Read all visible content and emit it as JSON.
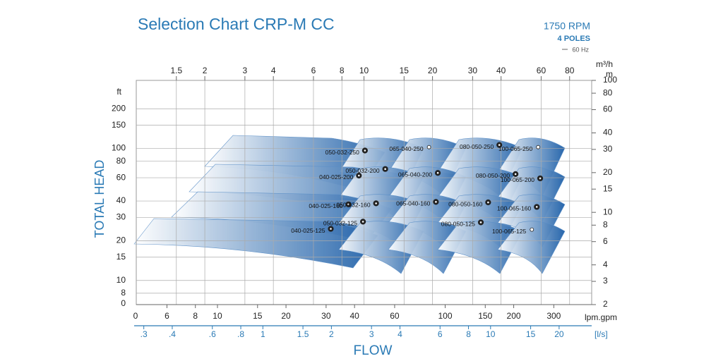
{
  "chart_data": {
    "type": "selection",
    "title": "Selection Chart CRP-M CC",
    "speed": "1750 RPM",
    "poles": "4 POLES",
    "frequency": "60 Hz",
    "x_label": "FLOW",
    "y_label": "TOTAL HEAD",
    "x_scale": "log",
    "y_scale": "log",
    "grid": true,
    "x_unit": "m³/h",
    "xlim": [
      1,
      100
    ],
    "xticks": [
      1.5,
      2,
      3,
      4,
      6,
      8,
      10,
      15,
      20,
      30,
      40,
      60,
      80
    ],
    "x2_unit": "lpm.gpm",
    "x2lim": [
      4.4,
      440
    ],
    "x2_zero_label": "0",
    "x2ticks": [
      6,
      8,
      10,
      15,
      20,
      30,
      40,
      60,
      100,
      150,
      200,
      300
    ],
    "x3_unit": "[l/s]",
    "x3lim": [
      0.278,
      27.8
    ],
    "x3ticks": [
      {
        "value": 0.3,
        "label": ".3"
      },
      {
        "value": 0.4,
        "label": ".4"
      },
      {
        "value": 0.6,
        "label": ".6"
      },
      {
        "value": 0.8,
        "label": ".8"
      },
      1,
      1.5,
      2,
      3,
      4,
      6,
      8,
      10,
      15,
      20
    ],
    "y_unit": "m",
    "ylim": [
      2,
      100
    ],
    "yticks": [
      2,
      3,
      4,
      6,
      8,
      10,
      15,
      20,
      30,
      40,
      60,
      80,
      100
    ],
    "y2_unit": "ft",
    "y2lim": [
      6.56,
      328
    ],
    "y2_zero_label": "0",
    "y2ticks": [
      8,
      10,
      15,
      20,
      30,
      40,
      60,
      80,
      100,
      150,
      200
    ],
    "color": "#1d5fa8",
    "pumps": [
      {
        "label": "050-032-250",
        "flow": 10.1,
        "head": 29.4,
        "marker": "filled"
      },
      {
        "label": "065-040-250",
        "flow": 19.3,
        "head": 31.2,
        "marker": "open"
      },
      {
        "label": "080-050-250",
        "flow": 39.3,
        "head": 32.4,
        "marker": "filled"
      },
      {
        "label": "100-065-250",
        "flow": 58.2,
        "head": 31.2,
        "marker": "open"
      },
      {
        "label": "040-025-200",
        "flow": 9.5,
        "head": 19.0,
        "marker": "filled"
      },
      {
        "label": "050-032-200",
        "flow": 12.4,
        "head": 21.3,
        "marker": "filled"
      },
      {
        "label": "065-040-200",
        "flow": 21.1,
        "head": 19.9,
        "marker": "filled"
      },
      {
        "label": "080-050-200",
        "flow": 46.3,
        "head": 19.5,
        "marker": "filled"
      },
      {
        "label": "100-065-200",
        "flow": 59.4,
        "head": 18.1,
        "marker": "filled"
      },
      {
        "label": "040-025-160",
        "flow": 8.55,
        "head": 11.5,
        "marker": "filled"
      },
      {
        "label": "050-032-160",
        "flow": 11.3,
        "head": 11.7,
        "marker": "filled"
      },
      {
        "label": "065-040-160",
        "flow": 20.7,
        "head": 12.0,
        "marker": "filled"
      },
      {
        "label": "080-050-160",
        "flow": 35.1,
        "head": 11.9,
        "marker": "filled"
      },
      {
        "label": "100-065-160",
        "flow": 57.4,
        "head": 11.0,
        "marker": "filled"
      },
      {
        "label": "040-025-125",
        "flow": 7.15,
        "head": 7.5,
        "marker": "filled"
      },
      {
        "label": "050-032-125",
        "flow": 9.9,
        "head": 8.5,
        "marker": "filled"
      },
      {
        "label": "080-050-125",
        "flow": 32.6,
        "head": 8.4,
        "marker": "filled"
      },
      {
        "label": "100-065-125",
        "flow": 54.6,
        "head": 7.4,
        "marker": "open"
      }
    ]
  }
}
